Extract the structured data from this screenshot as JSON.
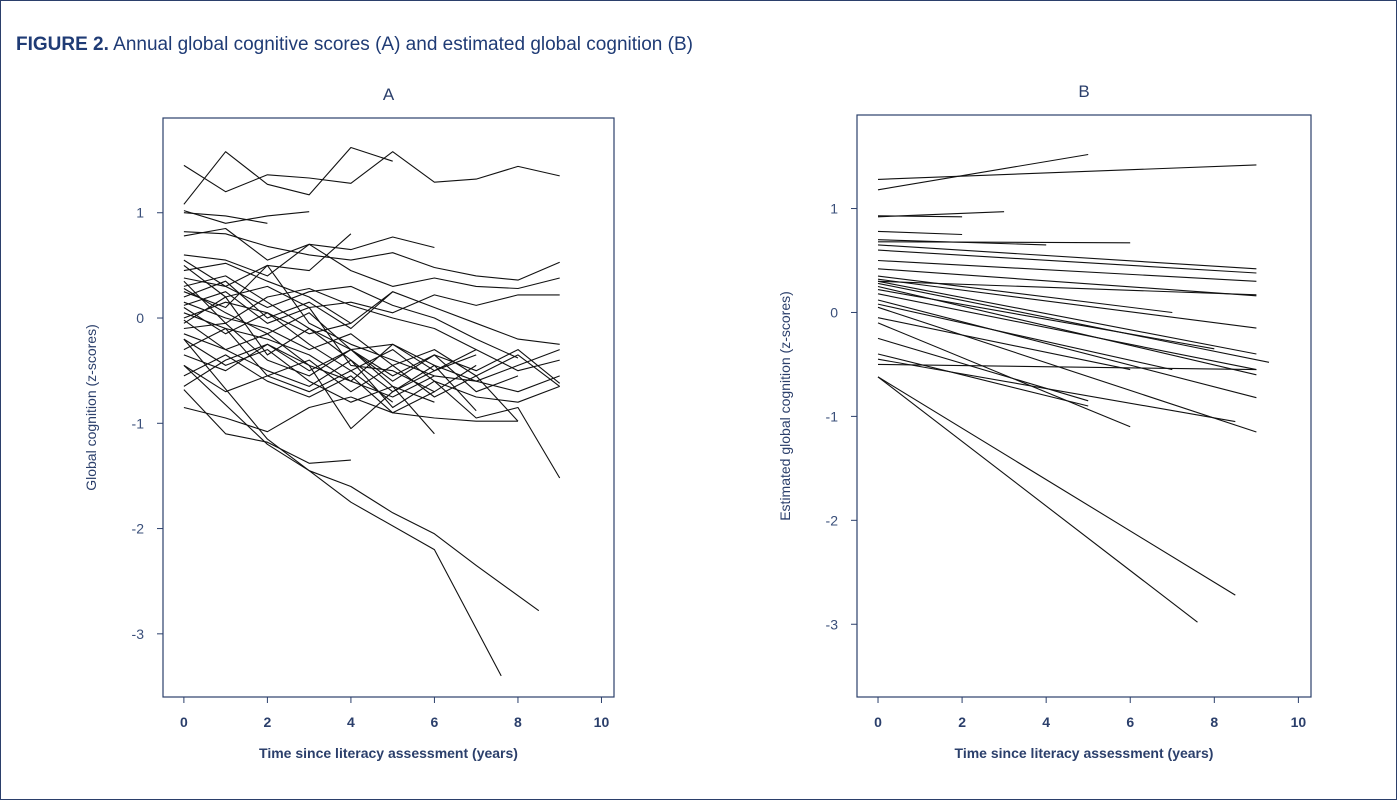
{
  "figure": {
    "label": "FIGURE 2.",
    "title": "Annual global cognitive scores (A) and estimated global cognition (B)"
  },
  "chart_data": [
    {
      "panel": "A",
      "type": "line",
      "xlabel": "Time since literacy assessment (years)",
      "ylabel": "Global cognition (z-scores)",
      "xlim": [
        -0.5,
        10.3
      ],
      "ylim": [
        -3.6,
        1.9
      ],
      "xticks": [
        0,
        2,
        4,
        6,
        8,
        10
      ],
      "yticks": [
        1,
        0,
        -1,
        -2,
        -3
      ],
      "grid": false,
      "series": [
        {
          "x": [
            0,
            1,
            2,
            3,
            4,
            5,
            6,
            7,
            8,
            9
          ],
          "y": [
            1.45,
            1.2,
            1.36,
            1.33,
            1.28,
            1.58,
            1.29,
            1.32,
            1.44,
            1.35
          ]
        },
        {
          "x": [
            0,
            1,
            2,
            3,
            4,
            5
          ],
          "y": [
            1.08,
            1.58,
            1.27,
            1.17,
            1.62,
            1.49
          ]
        },
        {
          "x": [
            0,
            1,
            2,
            3
          ],
          "y": [
            1.02,
            0.9,
            0.97,
            1.01
          ]
        },
        {
          "x": [
            0,
            1,
            2
          ],
          "y": [
            1.0,
            0.97,
            0.9
          ]
        },
        {
          "x": [
            0,
            1,
            2,
            3,
            4,
            5,
            6,
            7,
            8,
            9
          ],
          "y": [
            0.82,
            0.8,
            0.68,
            0.6,
            0.55,
            0.62,
            0.48,
            0.4,
            0.36,
            0.53
          ]
        },
        {
          "x": [
            0,
            1,
            2,
            3,
            4,
            5,
            6
          ],
          "y": [
            0.78,
            0.85,
            0.55,
            0.7,
            0.65,
            0.77,
            0.67
          ]
        },
        {
          "x": [
            0,
            1,
            2,
            3,
            4,
            5,
            6,
            7,
            8,
            9
          ],
          "y": [
            0.6,
            0.55,
            0.4,
            0.7,
            0.45,
            0.3,
            0.38,
            0.3,
            0.28,
            0.38
          ]
        },
        {
          "x": [
            0,
            1,
            2,
            3,
            4
          ],
          "y": [
            0.55,
            0.3,
            0.5,
            0.45,
            0.8
          ]
        },
        {
          "x": [
            0,
            1,
            2,
            3,
            4,
            5,
            6,
            7,
            8,
            9
          ],
          "y": [
            0.5,
            0.2,
            0.3,
            0.1,
            0.15,
            0.05,
            0.22,
            0.12,
            0.22,
            0.22
          ]
        },
        {
          "x": [
            0,
            1,
            2,
            3,
            4,
            5,
            6,
            7,
            8,
            9
          ],
          "y": [
            0.45,
            0.52,
            0.35,
            0.2,
            -0.05,
            0.25,
            0.1,
            -0.05,
            -0.2,
            -0.25
          ]
        },
        {
          "x": [
            0,
            1,
            2,
            3,
            4,
            5,
            6,
            7,
            8
          ],
          "y": [
            0.38,
            0.3,
            0.1,
            0.25,
            0.3,
            0.12,
            0.0,
            -0.2,
            -0.38
          ]
        },
        {
          "x": [
            0,
            1,
            2,
            3,
            4,
            5,
            6,
            7,
            8,
            9
          ],
          "y": [
            0.35,
            -0.05,
            0.2,
            0.28,
            0.12,
            0.0,
            -0.1,
            -0.3,
            -0.5,
            -0.4
          ]
        },
        {
          "x": [
            0,
            1,
            2,
            3,
            4,
            5,
            6,
            7
          ],
          "y": [
            0.3,
            0.4,
            0.15,
            -0.1,
            -0.3,
            -0.25,
            -0.45,
            -0.88
          ]
        },
        {
          "x": [
            0,
            1,
            2,
            3,
            4,
            5,
            6,
            7,
            8
          ],
          "y": [
            0.28,
            0.05,
            -0.15,
            0.05,
            -0.3,
            -0.55,
            -0.35,
            -0.7,
            -0.55
          ]
        },
        {
          "x": [
            0,
            1,
            2,
            3,
            4,
            5,
            6,
            7,
            8,
            9
          ],
          "y": [
            0.25,
            0.1,
            0.5,
            -0.05,
            -0.25,
            -0.4,
            -0.55,
            -0.6,
            -0.7,
            -0.55
          ]
        },
        {
          "x": [
            0,
            1,
            2,
            3,
            4,
            5
          ],
          "y": [
            0.2,
            0.35,
            0.0,
            0.15,
            -0.1,
            0.25
          ]
        },
        {
          "x": [
            0,
            1,
            2,
            3,
            4,
            5,
            6,
            7,
            8,
            9
          ],
          "y": [
            0.15,
            0.0,
            -0.1,
            -0.3,
            -0.15,
            -0.45,
            -0.3,
            -0.55,
            -0.35,
            -0.65
          ]
        },
        {
          "x": [
            0,
            1,
            2,
            3,
            4,
            5,
            6,
            7
          ],
          "y": [
            0.12,
            0.25,
            -0.05,
            0.1,
            -0.45,
            -0.5,
            -0.7,
            -0.45
          ]
        },
        {
          "x": [
            0,
            1,
            2,
            3,
            4,
            5,
            6,
            7,
            8,
            9
          ],
          "y": [
            0.1,
            -0.15,
            0.05,
            -0.25,
            -0.5,
            -0.3,
            -0.6,
            -0.75,
            -0.8,
            -0.65
          ]
        },
        {
          "x": [
            0,
            1,
            2,
            3,
            4,
            5,
            6
          ],
          "y": [
            0.05,
            -0.1,
            -0.2,
            -0.35,
            -0.6,
            -0.75,
            -0.55
          ]
        },
        {
          "x": [
            0,
            1,
            2,
            3,
            4
          ],
          "y": [
            0.0,
            0.15,
            0.05,
            -0.15,
            -0.05
          ]
        },
        {
          "x": [
            0,
            1,
            2,
            3,
            4,
            5,
            6,
            7
          ],
          "y": [
            -0.02,
            -0.3,
            -0.15,
            -0.45,
            -0.6,
            -0.25,
            -0.5,
            -0.35
          ]
        },
        {
          "x": [
            0,
            1,
            2,
            3,
            4,
            5,
            6,
            7,
            8,
            9
          ],
          "y": [
            -0.05,
            0.2,
            -0.35,
            -0.1,
            -0.4,
            -0.7,
            -0.45,
            -0.6,
            -0.45,
            -0.3
          ]
        },
        {
          "x": [
            0,
            1,
            2,
            3,
            4,
            5,
            6
          ],
          "y": [
            -0.1,
            -0.05,
            -0.4,
            -0.55,
            -0.3,
            -0.65,
            -0.8
          ]
        },
        {
          "x": [
            0,
            1,
            2,
            3,
            4,
            5,
            6,
            7,
            8,
            9
          ],
          "y": [
            -0.15,
            -0.3,
            -0.5,
            -0.65,
            -0.4,
            -0.85,
            -0.6,
            -0.95,
            -0.85,
            -1.52
          ]
        },
        {
          "x": [
            0,
            1,
            2,
            3,
            4,
            5,
            6
          ],
          "y": [
            -0.2,
            -0.45,
            -0.3,
            -0.6,
            -0.8,
            -0.65,
            -1.1
          ]
        },
        {
          "x": [
            0,
            1,
            2,
            3,
            4,
            5
          ],
          "y": [
            -0.3,
            -0.1,
            -0.55,
            -0.7,
            -0.5,
            -0.8
          ]
        },
        {
          "x": [
            0,
            1,
            2,
            3,
            4,
            5,
            6,
            7
          ],
          "y": [
            -0.35,
            -0.5,
            -0.25,
            -0.45,
            -1.05,
            -0.7,
            -0.5,
            -0.3
          ]
        },
        {
          "x": [
            0,
            1,
            2,
            3,
            4,
            5,
            6,
            7,
            8
          ],
          "y": [
            -0.45,
            -0.7,
            -0.55,
            -0.4,
            -0.7,
            -0.45,
            -0.75,
            -0.55,
            -0.98
          ]
        },
        {
          "x": [
            0,
            1,
            2,
            3,
            4,
            5,
            6
          ],
          "y": [
            -0.55,
            -0.35,
            -0.6,
            -0.75,
            -0.55,
            -0.9,
            -0.7
          ]
        },
        {
          "x": [
            0,
            1,
            2,
            3,
            4,
            5,
            6,
            7,
            8,
            9
          ],
          "y": [
            -0.65,
            -0.4,
            -0.25,
            -0.5,
            -0.3,
            -0.6,
            -0.35,
            -0.5,
            -0.3,
            -0.62
          ]
        },
        {
          "x": [
            0,
            1,
            2,
            3,
            4,
            5,
            6,
            7,
            8
          ],
          "y": [
            -0.85,
            -0.95,
            -1.08,
            -0.85,
            -0.75,
            -0.9,
            -0.95,
            -0.98,
            -0.98
          ]
        },
        {
          "x": [
            0,
            1,
            2,
            3,
            4
          ],
          "y": [
            -0.68,
            -1.1,
            -1.18,
            -1.38,
            -1.35
          ]
        },
        {
          "x": [
            0,
            2,
            4,
            6,
            7.6
          ],
          "y": [
            -0.2,
            -1.15,
            -1.75,
            -2.2,
            -3.4
          ]
        },
        {
          "x": [
            0,
            2,
            3,
            4,
            5,
            6,
            7,
            8.5
          ],
          "y": [
            -0.45,
            -1.2,
            -1.45,
            -1.6,
            -1.85,
            -2.05,
            -2.35,
            -2.78
          ]
        }
      ]
    },
    {
      "panel": "B",
      "type": "line",
      "xlabel": "Time since literacy assessment (years)",
      "ylabel": "Estimated global cognition (z-scores)",
      "xlim": [
        -0.5,
        10.3
      ],
      "ylim": [
        -3.7,
        1.9
      ],
      "xticks": [
        0,
        2,
        4,
        6,
        8,
        10
      ],
      "yticks": [
        1,
        0,
        -1,
        -2,
        -3
      ],
      "grid": false,
      "series": [
        {
          "x": [
            0,
            5
          ],
          "y": [
            1.18,
            1.52
          ]
        },
        {
          "x": [
            0,
            9
          ],
          "y": [
            1.28,
            1.42
          ]
        },
        {
          "x": [
            0,
            3
          ],
          "y": [
            0.92,
            0.97
          ]
        },
        {
          "x": [
            0,
            2
          ],
          "y": [
            0.93,
            0.92
          ]
        },
        {
          "x": [
            0,
            2
          ],
          "y": [
            0.78,
            0.75
          ]
        },
        {
          "x": [
            0,
            6
          ],
          "y": [
            0.68,
            0.67
          ]
        },
        {
          "x": [
            0,
            4
          ],
          "y": [
            0.7,
            0.65
          ]
        },
        {
          "x": [
            0,
            9
          ],
          "y": [
            0.65,
            0.42
          ]
        },
        {
          "x": [
            0,
            9
          ],
          "y": [
            0.6,
            0.38
          ]
        },
        {
          "x": [
            0,
            9
          ],
          "y": [
            0.5,
            0.3
          ]
        },
        {
          "x": [
            0,
            9
          ],
          "y": [
            0.42,
            0.16
          ]
        },
        {
          "x": [
            0,
            9
          ],
          "y": [
            0.3,
            0.17
          ]
        },
        {
          "x": [
            0,
            7
          ],
          "y": [
            0.35,
            0.0
          ]
        },
        {
          "x": [
            0,
            9
          ],
          "y": [
            0.32,
            -0.15
          ]
        },
        {
          "x": [
            0,
            9
          ],
          "y": [
            0.3,
            -0.4
          ]
        },
        {
          "x": [
            0,
            9.3
          ],
          "y": [
            0.28,
            -0.48
          ]
        },
        {
          "x": [
            0,
            9
          ],
          "y": [
            0.25,
            -0.6
          ]
        },
        {
          "x": [
            0,
            8
          ],
          "y": [
            0.22,
            -0.35
          ]
        },
        {
          "x": [
            0,
            9
          ],
          "y": [
            0.18,
            -0.55
          ]
        },
        {
          "x": [
            0,
            9
          ],
          "y": [
            0.12,
            -0.82
          ]
        },
        {
          "x": [
            0,
            7
          ],
          "y": [
            0.08,
            -0.55
          ]
        },
        {
          "x": [
            0,
            9
          ],
          "y": [
            0.05,
            -1.15
          ]
        },
        {
          "x": [
            0,
            6
          ],
          "y": [
            -0.05,
            -0.55
          ]
        },
        {
          "x": [
            0,
            6
          ],
          "y": [
            -0.1,
            -1.1
          ]
        },
        {
          "x": [
            0,
            5
          ],
          "y": [
            -0.25,
            -0.85
          ]
        },
        {
          "x": [
            0,
            5
          ],
          "y": [
            -0.4,
            -0.9
          ]
        },
        {
          "x": [
            0,
            8.5
          ],
          "y": [
            -0.45,
            -1.05
          ]
        },
        {
          "x": [
            0,
            9
          ],
          "y": [
            -0.5,
            -0.55
          ]
        },
        {
          "x": [
            0,
            8.5
          ],
          "y": [
            -0.62,
            -2.72
          ]
        },
        {
          "x": [
            0,
            7.6
          ],
          "y": [
            -0.62,
            -2.98
          ]
        }
      ]
    }
  ]
}
